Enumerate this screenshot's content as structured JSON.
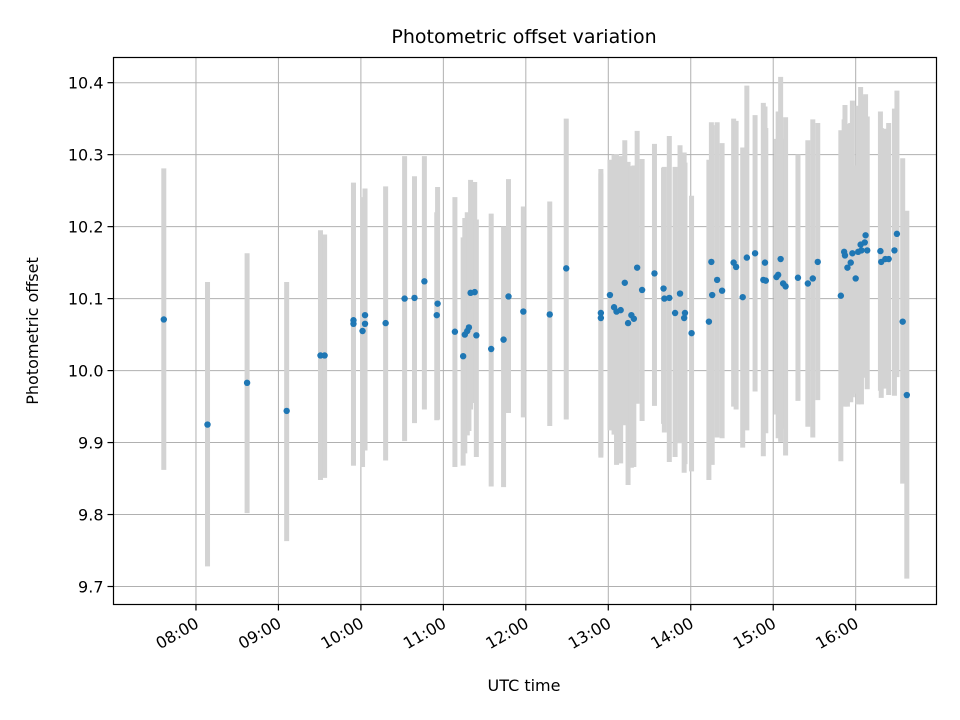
{
  "chart_data": {
    "type": "scatter",
    "title": "Photometric offset variation",
    "xlabel": "UTC time",
    "ylabel": "Photometric offset",
    "x_unit": "hours UTC",
    "xlim": [
      7.0,
      16.98
    ],
    "ylim": [
      9.675,
      10.435
    ],
    "grid": true,
    "x_ticks": [
      {
        "value": 8,
        "label": "08:00"
      },
      {
        "value": 9,
        "label": "09:00"
      },
      {
        "value": 10,
        "label": "10:00"
      },
      {
        "value": 11,
        "label": "11:00"
      },
      {
        "value": 12,
        "label": "12:00"
      },
      {
        "value": 13,
        "label": "13:00"
      },
      {
        "value": 14,
        "label": "14:00"
      },
      {
        "value": 15,
        "label": "15:00"
      },
      {
        "value": 16,
        "label": "16:00"
      }
    ],
    "y_ticks": [
      {
        "value": 9.7,
        "label": "9.7"
      },
      {
        "value": 9.8,
        "label": "9.8"
      },
      {
        "value": 9.9,
        "label": "9.9"
      },
      {
        "value": 10.0,
        "label": "10.0"
      },
      {
        "value": 10.1,
        "label": "10.1"
      },
      {
        "value": 10.2,
        "label": "10.2"
      },
      {
        "value": 10.3,
        "label": "10.3"
      },
      {
        "value": 10.4,
        "label": "10.4"
      }
    ],
    "point_color": "#1f77b4",
    "errorbar_color": "#d3d3d3",
    "series": [
      {
        "name": "offset",
        "points": [
          [
            7.61,
            10.071,
            9.862,
            10.281
          ],
          [
            8.14,
            9.925,
            9.728,
            10.123
          ],
          [
            8.62,
            9.983,
            9.802,
            10.163
          ],
          [
            9.1,
            9.944,
            9.763,
            10.123
          ],
          [
            9.51,
            10.021,
            9.848,
            10.195
          ],
          [
            9.56,
            10.021,
            9.851,
            10.189
          ],
          [
            9.91,
            10.07,
            9.868,
            10.261
          ],
          [
            9.91,
            10.065,
            9.868,
            10.261
          ],
          [
            10.02,
            10.055,
            9.866,
            10.241
          ],
          [
            10.05,
            10.077,
            9.889,
            10.253
          ],
          [
            10.05,
            10.065,
            9.889,
            10.253
          ],
          [
            10.3,
            10.066,
            9.875,
            10.256
          ],
          [
            10.53,
            10.1,
            9.902,
            10.298
          ],
          [
            10.65,
            10.101,
            9.927,
            10.27
          ],
          [
            10.77,
            10.124,
            9.946,
            10.298
          ],
          [
            10.92,
            10.077,
            9.931,
            10.22
          ],
          [
            10.93,
            10.093,
            9.932,
            10.255
          ],
          [
            11.14,
            10.054,
            9.866,
            10.241
          ],
          [
            11.24,
            10.02,
            9.868,
            10.185
          ],
          [
            11.26,
            10.05,
            9.885,
            10.212
          ],
          [
            11.29,
            10.055,
            9.91,
            10.22
          ],
          [
            11.31,
            10.06,
            9.916,
            10.21
          ],
          [
            11.33,
            10.108,
            9.946,
            10.265
          ],
          [
            11.38,
            10.109,
            9.955,
            10.262
          ],
          [
            11.4,
            10.049,
            9.88,
            10.21
          ],
          [
            11.58,
            10.03,
            9.839,
            10.218
          ],
          [
            11.73,
            10.043,
            9.838,
            10.2
          ],
          [
            11.79,
            10.103,
            9.941,
            10.266
          ],
          [
            11.97,
            10.082,
            9.935,
            10.228
          ],
          [
            12.29,
            10.078,
            9.923,
            10.235
          ],
          [
            12.49,
            10.142,
            9.932,
            10.35
          ],
          [
            12.91,
            10.08,
            9.879,
            10.28
          ],
          [
            12.91,
            10.073,
            9.882,
            10.274
          ],
          [
            13.02,
            10.105,
            9.917,
            10.293
          ],
          [
            13.07,
            10.088,
            9.911,
            10.3
          ],
          [
            13.1,
            10.082,
            9.869,
            10.301
          ],
          [
            13.15,
            10.084,
            9.871,
            10.298
          ],
          [
            13.2,
            10.122,
            9.924,
            10.32
          ],
          [
            13.24,
            10.066,
            9.841,
            10.29
          ],
          [
            13.28,
            10.077,
            9.865,
            10.284
          ],
          [
            13.31,
            10.072,
            9.866,
            10.285
          ],
          [
            13.35,
            10.143,
            9.954,
            10.333
          ],
          [
            13.41,
            10.112,
            9.93,
            10.294
          ],
          [
            13.56,
            10.135,
            9.951,
            10.315
          ],
          [
            13.67,
            10.114,
            9.926,
            10.282
          ],
          [
            13.68,
            10.1,
            9.914,
            10.283
          ],
          [
            13.74,
            10.101,
            9.873,
            10.326
          ],
          [
            13.81,
            10.08,
            9.88,
            10.283
          ],
          [
            13.87,
            10.107,
            9.899,
            10.313
          ],
          [
            13.92,
            10.073,
            9.858,
            10.303
          ],
          [
            13.93,
            10.08,
            9.87,
            10.289
          ],
          [
            14.01,
            10.052,
            9.86,
            10.243
          ],
          [
            14.22,
            10.068,
            9.848,
            10.293
          ],
          [
            14.25,
            10.151,
            9.945,
            10.345
          ],
          [
            14.26,
            10.105,
            9.869,
            10.341
          ],
          [
            14.32,
            10.126,
            9.907,
            10.345
          ],
          [
            14.38,
            10.111,
            9.906,
            10.316
          ],
          [
            14.52,
            10.15,
            9.95,
            10.35
          ],
          [
            14.55,
            10.144,
            9.946,
            10.347
          ],
          [
            14.63,
            10.102,
            9.893,
            10.31
          ],
          [
            14.68,
            10.157,
            9.917,
            10.396
          ],
          [
            14.78,
            10.163,
            9.971,
            10.355
          ],
          [
            14.88,
            10.126,
            9.881,
            10.372
          ],
          [
            14.9,
            10.15,
            9.933,
            10.367
          ],
          [
            14.91,
            10.125,
            9.913,
            10.337
          ],
          [
            15.04,
            10.13,
            9.939,
            10.322
          ],
          [
            15.06,
            10.133,
            9.906,
            10.36
          ],
          [
            15.09,
            10.155,
            9.901,
            10.408
          ],
          [
            15.12,
            10.121,
            9.919,
            10.322
          ],
          [
            15.15,
            10.117,
            9.882,
            10.352
          ],
          [
            15.3,
            10.129,
            9.958,
            10.3
          ],
          [
            15.42,
            10.121,
            9.922,
            10.32
          ],
          [
            15.48,
            10.128,
            9.907,
            10.349
          ],
          [
            15.54,
            10.151,
            9.959,
            10.344
          ],
          [
            15.82,
            10.104,
            9.874,
            10.334
          ],
          [
            15.86,
            10.165,
            9.981,
            10.349
          ],
          [
            15.87,
            10.16,
            9.95,
            10.369
          ],
          [
            15.9,
            10.143,
            9.95,
            10.343
          ],
          [
            15.94,
            10.15,
            9.956,
            10.344
          ],
          [
            15.96,
            10.163,
            9.963,
            10.375
          ],
          [
            16.0,
            10.128,
            9.968,
            10.285
          ],
          [
            16.03,
            10.165,
            9.953,
            10.368
          ],
          [
            16.06,
            10.175,
            9.956,
            10.394
          ],
          [
            16.07,
            10.167,
            9.953,
            10.381
          ],
          [
            16.11,
            10.178,
            9.99,
            10.366
          ],
          [
            16.12,
            10.188,
            9.991,
            10.384
          ],
          [
            16.14,
            10.167,
            9.974,
            10.353
          ],
          [
            16.3,
            10.166,
            9.972,
            10.36
          ],
          [
            16.31,
            10.151,
            9.962,
            10.337
          ],
          [
            16.36,
            10.155,
            9.975,
            10.336
          ],
          [
            16.4,
            10.155,
            9.966,
            10.344
          ],
          [
            16.47,
            10.167,
            9.965,
            10.364
          ],
          [
            16.5,
            10.19,
            9.991,
            10.389
          ],
          [
            16.57,
            10.068,
            9.843,
            10.295
          ],
          [
            16.62,
            9.966,
            9.711,
            10.222
          ]
        ]
      }
    ]
  }
}
